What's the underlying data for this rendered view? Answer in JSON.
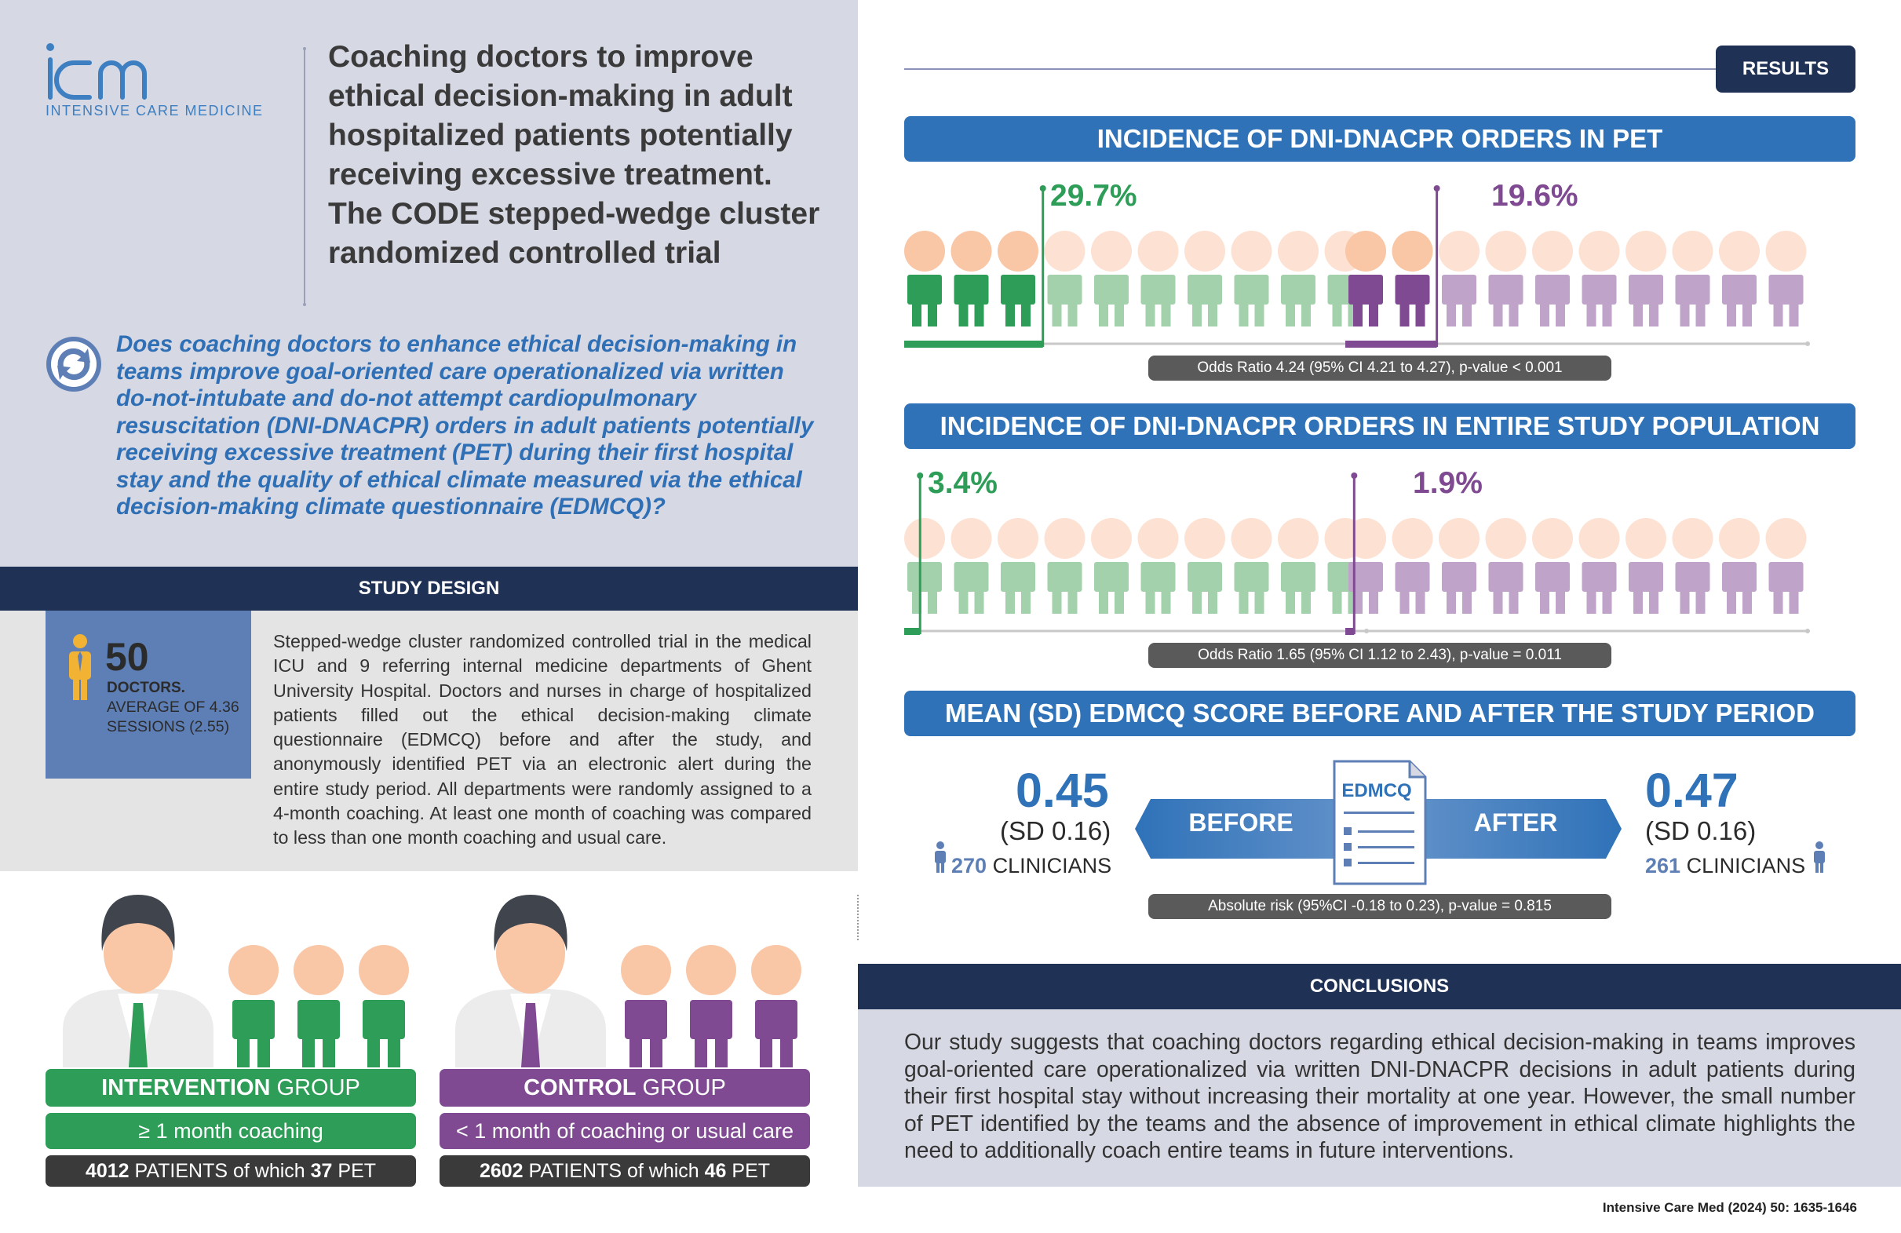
{
  "header": {
    "logo_text": "icm",
    "logo_subtitle": "INTENSIVE CARE MEDICINE",
    "title": "Coaching doctors to improve ethical decision-making in adult hospitalized patients potentially receiving excessive treatment. The CODE stepped-wedge cluster randomized controlled trial",
    "question": "Does coaching doctors to enhance ethical decision-making in teams improve goal-oriented care operationalized via written do-not-intubate and do-not attempt cardiopulmonary resuscitation (DNI-DNACPR) orders in adult patients potentially receiving excessive treatment (PET) during their first hospital stay and the quality of ethical climate measured via the ethical decision-making climate questionnaire (EDMCQ)?"
  },
  "study_design": {
    "heading": "STUDY DESIGN",
    "stat_number": "50",
    "stat_label": "DOCTORS.",
    "stat_detail": "AVERAGE OF 4.36 SESSIONS (2.55)",
    "text": "Stepped-wedge cluster randomized controlled trial in the medical ICU and 9 referring internal medicine departments of Ghent University Hospital. Doctors and nurses in charge of hospitalized patients filled out the ethical decision-making climate questionnaire (EDMCQ) before and after the study, and anonymously identified PET via an electronic alert during the entire study period. All departments were randomly assigned to a 4-month coaching. At least one month of coaching was compared to less than one month coaching and usual care."
  },
  "groups": {
    "intervention": {
      "name_bold": "INTERVENTION",
      "name_rest": " GROUP",
      "coaching": "≥ 1 month coaching",
      "patients_count": "4012",
      "patients_mid": " PATIENTS of which ",
      "pet_count": "37",
      "pet_label": " PET",
      "color": "#2e9d57"
    },
    "control": {
      "name_bold": "CONTROL",
      "name_rest": " GROUP",
      "coaching": "< 1 month of coaching or usual care",
      "patients_count": "2602",
      "patients_mid": " PATIENTS of which ",
      "pet_count": "46",
      "pet_label": " PET",
      "color": "#7f4a92"
    }
  },
  "results": {
    "badge": "RESULTS",
    "section1": {
      "title": "INCIDENCE OF DNI-DNACPR ORDERS IN PET",
      "intervention_pct": "29.7%",
      "control_pct": "19.6%",
      "intervention_value": 29.7,
      "control_value": 19.6,
      "odds": "Odds Ratio 4.24 (95% CI 4.21 to 4.27), p-value < 0.001"
    },
    "section2": {
      "title": "INCIDENCE OF DNI-DNACPR ORDERS IN ENTIRE STUDY POPULATION",
      "intervention_pct": "3.4%",
      "control_pct": "1.9%",
      "intervention_value": 3.4,
      "control_value": 1.9,
      "odds": "Odds Ratio 1.65 (95% CI 1.12 to 2.43), p-value = 0.011"
    },
    "section3": {
      "title": "MEAN (SD) EDMCQ SCORE BEFORE AND AFTER THE STUDY PERIOD",
      "before_label": "BEFORE",
      "after_label": "AFTER",
      "doc_label": "EDMCQ",
      "before_mean": "0.45",
      "before_sd": "(SD 0.16)",
      "before_n": "270",
      "after_mean": "0.47",
      "after_sd": "(SD 0.16)",
      "after_n": "261",
      "clinicians_label": "CLINICIANS",
      "absolute_risk": "Absolute risk (95%CI -0.18 to 0.23), p-value = 0.815"
    }
  },
  "conclusions": {
    "heading": "CONCLUSIONS",
    "text": "Our study suggests that coaching doctors regarding ethical decision-making in teams improves goal-oriented care operationalized via written DNI-DNACPR decisions in adult patients during their first hospital stay without increasing their mortality at one year. However, the small number of PET identified by the teams and the absence of improvement in ethical climate highlights the need to additionally coach entire teams in future interventions."
  },
  "citation": "Intensive Care Med (2024) 50: 1635-1646",
  "colors": {
    "green": "#2e9d57",
    "green_light": "#a3d1ab",
    "purple": "#7f4a92",
    "purple_light": "#bfa3c8",
    "skin": "#f9c6a6",
    "skin_light": "#fde1d2",
    "navy": "#1f3155",
    "blue": "#2f72b8"
  }
}
